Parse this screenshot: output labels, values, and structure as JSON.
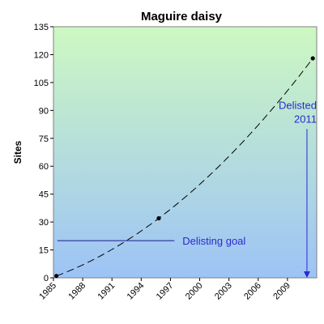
{
  "chart_data": {
    "type": "scatter",
    "title": "Maguire daisy",
    "xlabel": "",
    "ylabel": "Sites",
    "xlim": [
      1985,
      2012
    ],
    "ylim": [
      0,
      135
    ],
    "x_ticks": [
      1985,
      1988,
      1991,
      1994,
      1997,
      2000,
      2003,
      2006,
      2009
    ],
    "y_ticks": [
      0,
      15,
      30,
      45,
      60,
      75,
      90,
      105,
      120,
      135
    ],
    "background_gradient": [
      "#cdf8c2",
      "#9dc3f6"
    ],
    "series": [
      {
        "points": [
          {
            "x": 1985.3,
            "y": 1
          },
          {
            "x": 1995.8,
            "y": 32
          },
          {
            "x": 2011.6,
            "y": 118
          }
        ],
        "color": "#000000",
        "trendline": "dashed"
      }
    ],
    "annotations": {
      "delisting_goal": {
        "label": "Delisting goal",
        "y": 20,
        "x_start": 1985.4,
        "x_end": 1997.4,
        "color": "#1a1a8c"
      },
      "delisted": {
        "line1": "Delisted",
        "line2": "2011",
        "x": 2011,
        "y_top": 80,
        "y_bottom": 0,
        "color": "#2a2ad0"
      }
    }
  }
}
